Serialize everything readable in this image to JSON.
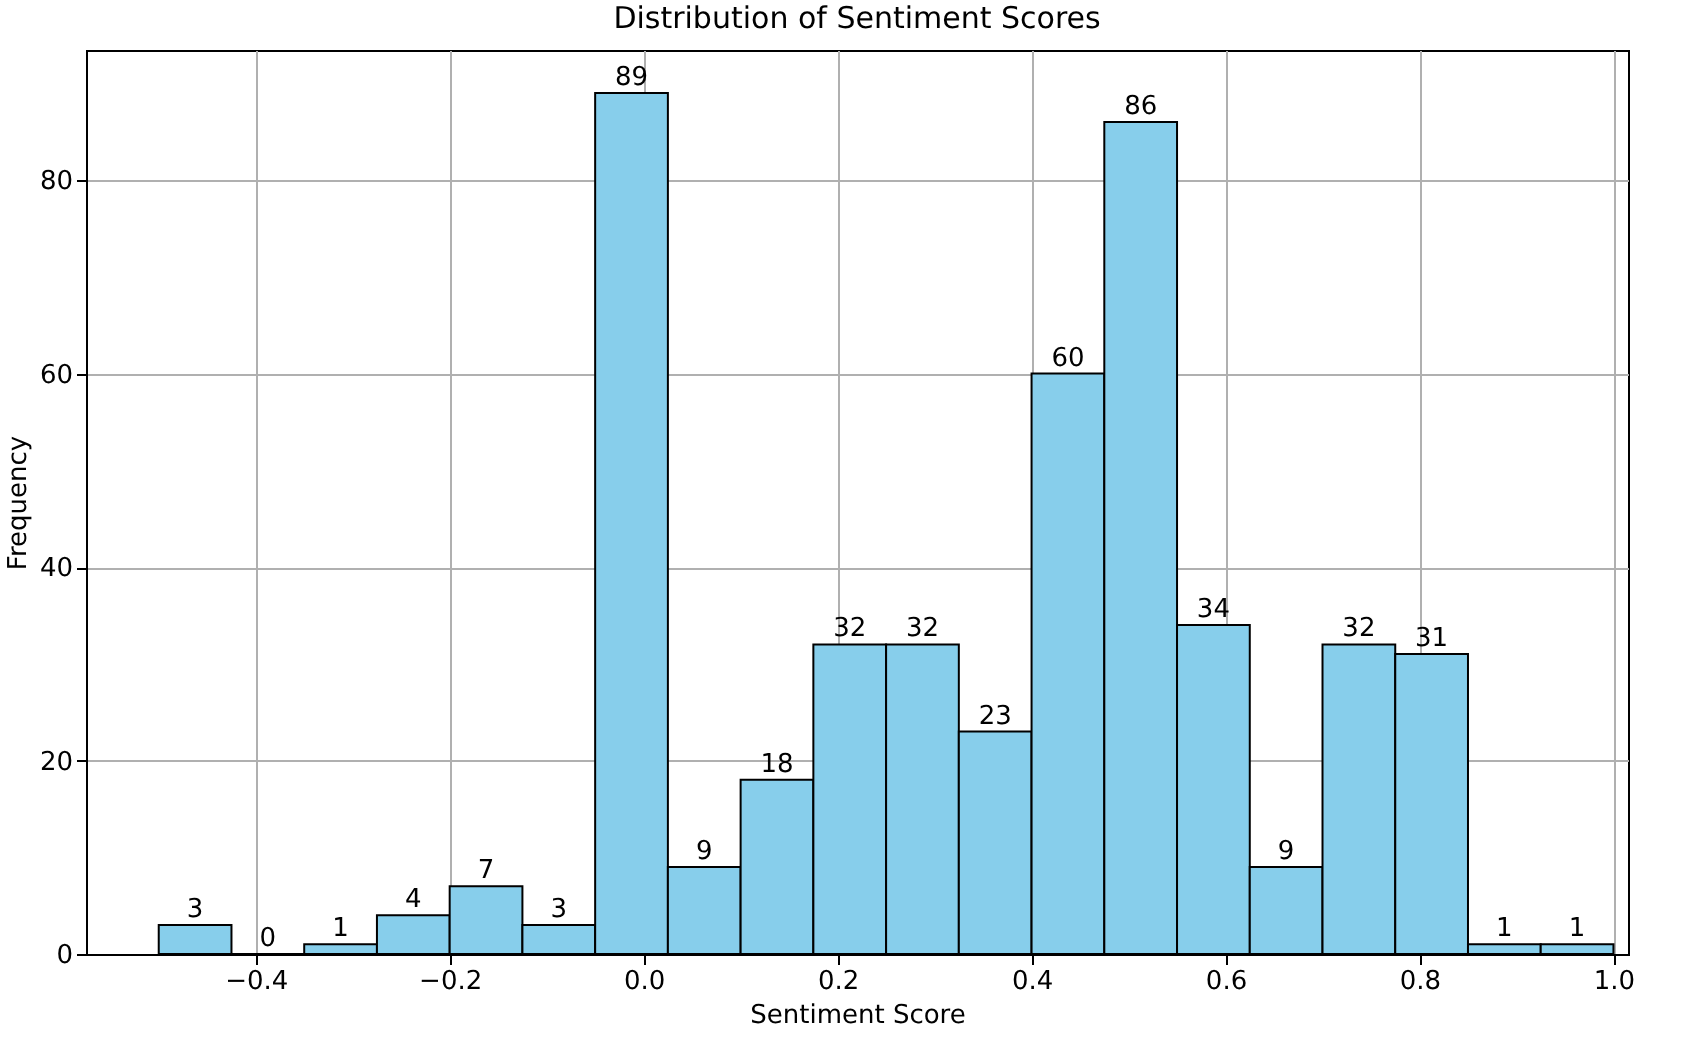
{
  "chart_data": {
    "type": "histogram",
    "title": "Distribution of Sentiment Scores",
    "xlabel": "Sentiment Score",
    "ylabel": "Frequency",
    "bins": [
      -0.5,
      -0.425,
      -0.35,
      -0.275,
      -0.2,
      -0.125,
      -0.05,
      0.025,
      0.1,
      0.175,
      0.25,
      0.325,
      0.4,
      0.475,
      0.55,
      0.625,
      0.7,
      0.775,
      0.85,
      0.925,
      1.0
    ],
    "values": [
      3,
      0,
      1,
      4,
      7,
      3,
      89,
      9,
      18,
      32,
      32,
      23,
      60,
      86,
      34,
      9,
      32,
      31,
      1,
      1
    ],
    "color": "#87ceeb",
    "xlim": [
      -0.575,
      1.015
    ],
    "xticks": [
      {
        "value": -0.4,
        "label": "−0.4"
      },
      {
        "value": -0.2,
        "label": "−0.2"
      },
      {
        "value": 0,
        "label": "0.0"
      },
      {
        "value": 0.2,
        "label": "0.2"
      },
      {
        "value": 0.4,
        "label": "0.4"
      },
      {
        "value": 0.6,
        "label": "0.6"
      },
      {
        "value": 0.8,
        "label": "0.8"
      },
      {
        "value": 1,
        "label": "1.0"
      }
    ],
    "ylim": [
      0,
      93.45
    ],
    "yticks": [
      0,
      20,
      40,
      60,
      80
    ],
    "grid": true,
    "data_labels": true
  }
}
